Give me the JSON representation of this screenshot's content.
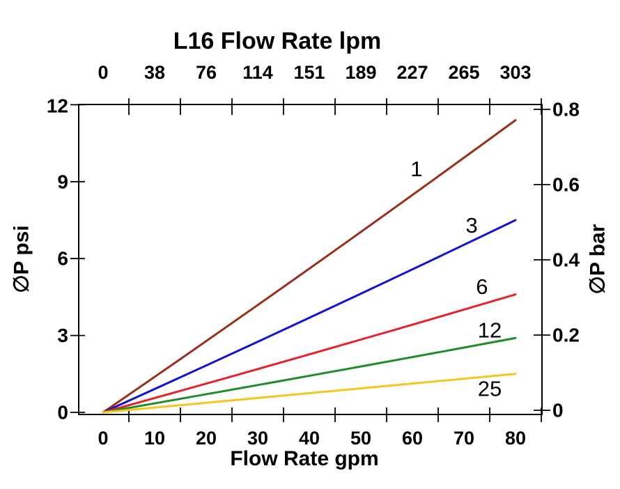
{
  "chart_data": {
    "type": "line",
    "title": "L16 Flow Rate lpm",
    "top_axis": {
      "label": "L16 Flow Rate lpm",
      "unit": "lpm",
      "tick_labels": [
        "0",
        "38",
        "76",
        "114",
        "151",
        "189",
        "227",
        "265",
        "303"
      ],
      "tick_label_positions_gpm": [
        0,
        10,
        20,
        30,
        40,
        50,
        60,
        70,
        80
      ],
      "tick_marks_gpm": [
        5,
        15,
        25,
        35,
        45,
        55,
        65,
        75,
        85
      ]
    },
    "bottom_axis": {
      "label": "Flow Rate gpm",
      "unit": "gpm",
      "tick_labels": [
        "0",
        "10",
        "20",
        "30",
        "40",
        "50",
        "60",
        "70",
        "80"
      ],
      "tick_label_positions_gpm": [
        0,
        10,
        20,
        30,
        40,
        50,
        60,
        70,
        80
      ],
      "tick_marks_gpm": [
        5,
        15,
        25,
        35,
        45,
        55,
        65,
        75,
        85
      ],
      "range_gpm": [
        -4.7,
        85.1
      ]
    },
    "left_axis": {
      "label": "∅P psi",
      "unit": "psi",
      "tick_labels": [
        "0",
        "3",
        "6",
        "9",
        "12"
      ],
      "tick_values_psi": [
        0,
        3,
        6,
        9,
        12
      ],
      "range_psi": [
        0,
        12
      ]
    },
    "right_axis": {
      "label": "∅P bar",
      "unit": "bar",
      "tick_labels": [
        "0",
        "0.2",
        "0.4",
        "0.6",
        "0.8"
      ],
      "tick_values_bar": [
        0,
        0.2,
        0.4,
        0.6,
        0.8
      ],
      "range_bar": [
        0,
        0.8
      ]
    },
    "grid": false,
    "legend": "inline-line-labels",
    "series": [
      {
        "label": "1",
        "color": "#97301A",
        "points_gpm_psi": [
          [
            0,
            0
          ],
          [
            80,
            11.4
          ]
        ],
        "label_pos_gpm_psi": [
          60.8,
          9.5
        ]
      },
      {
        "label": "3",
        "color": "#1414CC",
        "points_gpm_psi": [
          [
            0,
            0
          ],
          [
            80,
            7.5
          ]
        ],
        "label_pos_gpm_psi": [
          71.5,
          7.3
        ]
      },
      {
        "label": "6",
        "color": "#E8202A",
        "points_gpm_psi": [
          [
            0,
            0
          ],
          [
            80,
            4.6
          ]
        ],
        "label_pos_gpm_psi": [
          73.5,
          4.9
        ]
      },
      {
        "label": "12",
        "color": "#1E8C28",
        "points_gpm_psi": [
          [
            0,
            0
          ],
          [
            80,
            2.9
          ]
        ],
        "label_pos_gpm_psi": [
          75.0,
          3.2
        ]
      },
      {
        "label": "25",
        "color": "#F6C51E",
        "points_gpm_psi": [
          [
            0,
            0
          ],
          [
            80,
            1.5
          ]
        ],
        "label_pos_gpm_psi": [
          75.0,
          0.93
        ]
      }
    ],
    "axis_color": "#000000",
    "background_color": "#ffffff"
  }
}
